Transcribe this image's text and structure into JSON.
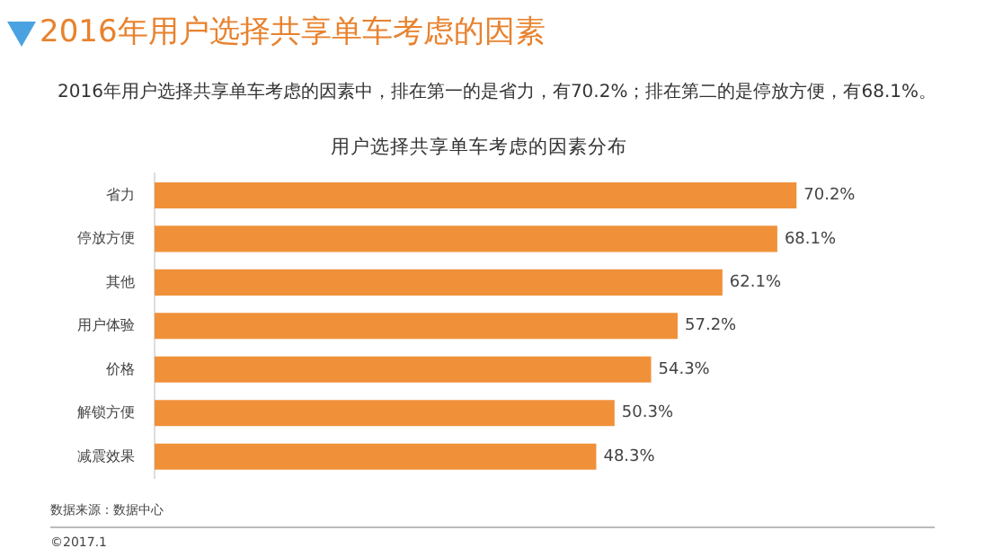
{
  "chart_data": {
    "type": "bar",
    "orientation": "horizontal",
    "title": "2016年用户选择共享单车考虑的因素",
    "subtitle": "2016年用户选择共享单车考虑的因素中，排在第一的是省力，有70.2%；排在第二的是停放方便，有68.1%。",
    "categories": [
      "省力",
      "停放方便",
      "其他",
      "用户体验",
      "价格",
      "解锁方便",
      "减震效果"
    ],
    "series": [
      {
        "name": "用户选择共享单车考虑的因素分布",
        "color": "#f0913a",
        "values": [
          70.2,
          68.1,
          62.1,
          57.2,
          54.3,
          50.3,
          48.3
        ],
        "value_labels": [
          "70.2%",
          "68.1%",
          "62.1%",
          "57.2%",
          "54.3%",
          "50.3%",
          "48.3%"
        ]
      }
    ],
    "legend": false,
    "annotations": [
      "数据来源：数据中心",
      "©2017.1"
    ]
  }
}
